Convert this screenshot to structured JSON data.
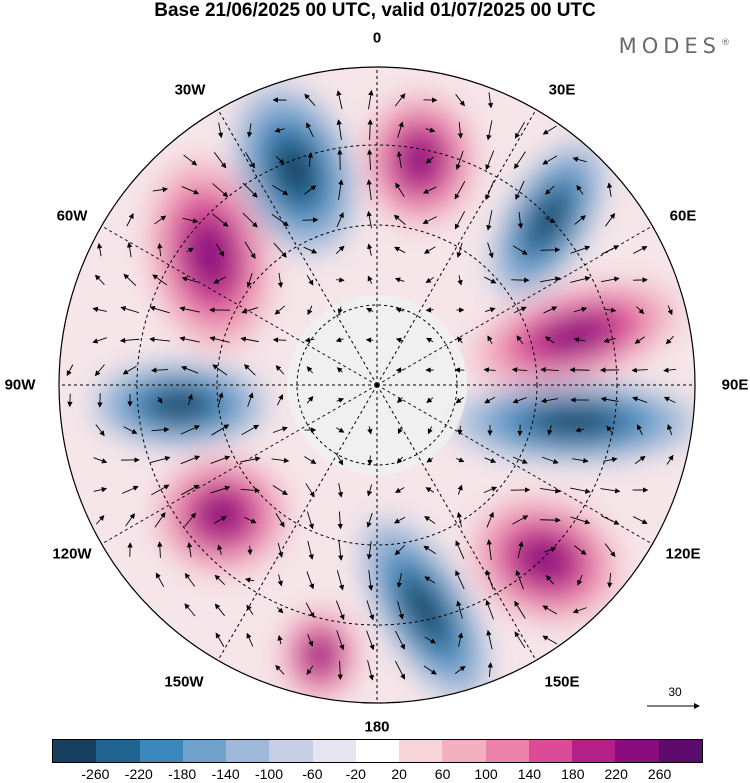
{
  "header": {
    "title": "Base 21/06/2025 00 UTC, valid 01/07/2025 00 UTC",
    "brand": "MODES",
    "brand_mark": "®"
  },
  "map": {
    "projection": "south polar stereographic",
    "longitude_labels": [
      "0",
      "30E",
      "60E",
      "90E",
      "120E",
      "150E",
      "180",
      "150W",
      "120W",
      "90W",
      "60W",
      "30W"
    ],
    "reference_vector": "30",
    "anomaly_centers": [
      {
        "sector": "0-30E",
        "sign": "positive"
      },
      {
        "sector": "30E-60E",
        "sign": "negative"
      },
      {
        "sector": "60E-90E",
        "sign": "positive"
      },
      {
        "sector": "90E-120E",
        "sign": "negative"
      },
      {
        "sector": "120E-150E",
        "sign": "positive"
      },
      {
        "sector": "150E-180",
        "sign": "negative"
      },
      {
        "sector": "150W-180",
        "sign": "positive"
      },
      {
        "sector": "120W-150W",
        "sign": "positive"
      },
      {
        "sector": "90W",
        "sign": "negative"
      },
      {
        "sector": "60W",
        "sign": "positive"
      },
      {
        "sector": "30W",
        "sign": "negative"
      }
    ]
  },
  "colorbar": {
    "tick_labels": [
      "-260",
      "-220",
      "-180",
      "-140",
      "-100",
      "-60",
      "-20",
      "20",
      "60",
      "100",
      "140",
      "180",
      "220",
      "260"
    ],
    "colors": [
      "#173f5f",
      "#1f6391",
      "#3a88bb",
      "#6fa3cc",
      "#9db8d9",
      "#c6cee6",
      "#e6e6f2",
      "#ffffff",
      "#f7d4d8",
      "#f2b0c0",
      "#ec82aa",
      "#db4b98",
      "#b51f88",
      "#8a0c7e",
      "#5c0a6c"
    ]
  }
}
